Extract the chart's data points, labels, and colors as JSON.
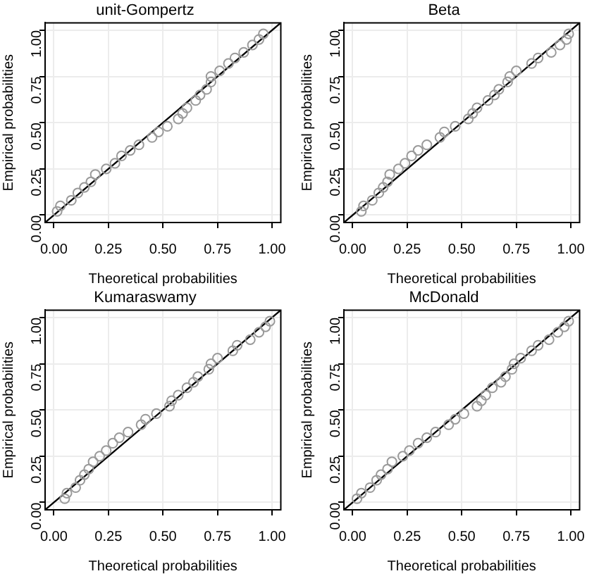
{
  "chart_data": [
    {
      "type": "scatter",
      "title": "unit-Gompertz",
      "xlabel": "Theoretical probabilities",
      "ylabel": "Empirical probabilities",
      "xlim": [
        -0.04,
        1.04
      ],
      "ylim": [
        -0.04,
        1.04
      ],
      "xticks": [
        {
          "value": 0,
          "label": "0.00"
        },
        {
          "value": 0.25,
          "label": "0.25"
        },
        {
          "value": 0.5,
          "label": "0.50"
        },
        {
          "value": 0.75,
          "label": "0.75"
        },
        {
          "value": 1,
          "label": "1.00"
        }
      ],
      "yticks": [
        {
          "value": 0,
          "label": "0.00"
        },
        {
          "value": 0.25,
          "label": "0.25"
        },
        {
          "value": 0.5,
          "label": "0.50"
        },
        {
          "value": 0.75,
          "label": "0.75"
        },
        {
          "value": 1,
          "label": "1.00"
        }
      ],
      "grid": true,
      "marker": "circle",
      "legend": false,
      "series": [
        {
          "color": "#9a9a9a",
          "x": [
            0.015,
            0.03,
            0.08,
            0.11,
            0.14,
            0.17,
            0.19,
            0.24,
            0.28,
            0.31,
            0.35,
            0.39,
            0.45,
            0.48,
            0.52,
            0.57,
            0.59,
            0.61,
            0.65,
            0.67,
            0.7,
            0.72,
            0.72,
            0.76,
            0.8,
            0.83,
            0.87,
            0.91,
            0.94,
            0.96
          ],
          "values": [
            0.02,
            0.05,
            0.08,
            0.12,
            0.15,
            0.18,
            0.22,
            0.25,
            0.28,
            0.32,
            0.35,
            0.38,
            0.42,
            0.45,
            0.48,
            0.52,
            0.55,
            0.58,
            0.62,
            0.65,
            0.68,
            0.72,
            0.75,
            0.78,
            0.82,
            0.85,
            0.88,
            0.92,
            0.95,
            0.98
          ]
        },
        {
          "type": "line",
          "color": "#000000",
          "marker": "none",
          "x": [
            -0.04,
            1.04
          ],
          "values": [
            -0.04,
            1.04
          ]
        }
      ]
    },
    {
      "type": "scatter",
      "title": "Beta",
      "xlabel": "Theoretical probabilities",
      "ylabel": "Empirical probabilities",
      "xlim": [
        -0.04,
        1.04
      ],
      "ylim": [
        -0.04,
        1.04
      ],
      "xticks": [
        {
          "value": 0,
          "label": "0.00"
        },
        {
          "value": 0.25,
          "label": "0.25"
        },
        {
          "value": 0.5,
          "label": "0.50"
        },
        {
          "value": 0.75,
          "label": "0.75"
        },
        {
          "value": 1,
          "label": "1.00"
        }
      ],
      "yticks": [
        {
          "value": 0,
          "label": "0.00"
        },
        {
          "value": 0.25,
          "label": "0.25"
        },
        {
          "value": 0.5,
          "label": "0.50"
        },
        {
          "value": 0.75,
          "label": "0.75"
        },
        {
          "value": 1,
          "label": "1.00"
        }
      ],
      "grid": true,
      "marker": "circle",
      "legend": false,
      "series": [
        {
          "color": "#9a9a9a",
          "x": [
            0.04,
            0.05,
            0.09,
            0.12,
            0.14,
            0.16,
            0.17,
            0.21,
            0.24,
            0.27,
            0.3,
            0.34,
            0.4,
            0.42,
            0.47,
            0.53,
            0.55,
            0.57,
            0.62,
            0.65,
            0.67,
            0.71,
            0.72,
            0.75,
            0.82,
            0.85,
            0.91,
            0.95,
            0.98,
            0.99
          ],
          "values": [
            0.02,
            0.05,
            0.08,
            0.12,
            0.15,
            0.18,
            0.22,
            0.25,
            0.28,
            0.32,
            0.35,
            0.38,
            0.42,
            0.45,
            0.48,
            0.52,
            0.55,
            0.58,
            0.62,
            0.65,
            0.68,
            0.72,
            0.75,
            0.78,
            0.82,
            0.85,
            0.88,
            0.92,
            0.95,
            0.98
          ]
        },
        {
          "type": "line",
          "color": "#000000",
          "marker": "none",
          "x": [
            -0.04,
            1.04
          ],
          "values": [
            -0.04,
            1.04
          ]
        }
      ]
    },
    {
      "type": "scatter",
      "title": "Kumaraswamy",
      "xlabel": "Theoretical probabilities",
      "ylabel": "Empirical probabilities",
      "xlim": [
        -0.04,
        1.04
      ],
      "ylim": [
        -0.04,
        1.04
      ],
      "xticks": [
        {
          "value": 0,
          "label": "0.00"
        },
        {
          "value": 0.25,
          "label": "0.25"
        },
        {
          "value": 0.5,
          "label": "0.50"
        },
        {
          "value": 0.75,
          "label": "0.75"
        },
        {
          "value": 1,
          "label": "1.00"
        }
      ],
      "yticks": [
        {
          "value": 0,
          "label": "0.00"
        },
        {
          "value": 0.25,
          "label": "0.25"
        },
        {
          "value": 0.5,
          "label": "0.50"
        },
        {
          "value": 0.75,
          "label": "0.75"
        },
        {
          "value": 1,
          "label": "1.00"
        }
      ],
      "grid": true,
      "marker": "circle",
      "legend": false,
      "series": [
        {
          "color": "#9a9a9a",
          "x": [
            0.05,
            0.06,
            0.1,
            0.12,
            0.14,
            0.16,
            0.18,
            0.21,
            0.24,
            0.27,
            0.3,
            0.34,
            0.4,
            0.42,
            0.47,
            0.53,
            0.54,
            0.57,
            0.61,
            0.64,
            0.66,
            0.71,
            0.72,
            0.75,
            0.82,
            0.84,
            0.9,
            0.94,
            0.97,
            0.99
          ],
          "values": [
            0.02,
            0.05,
            0.08,
            0.12,
            0.15,
            0.18,
            0.22,
            0.25,
            0.28,
            0.32,
            0.35,
            0.38,
            0.42,
            0.45,
            0.48,
            0.52,
            0.55,
            0.58,
            0.62,
            0.65,
            0.68,
            0.72,
            0.75,
            0.78,
            0.82,
            0.85,
            0.88,
            0.92,
            0.95,
            0.98
          ]
        },
        {
          "type": "line",
          "color": "#000000",
          "marker": "none",
          "x": [
            -0.04,
            1.04
          ],
          "values": [
            -0.04,
            1.04
          ]
        }
      ]
    },
    {
      "type": "scatter",
      "title": "McDonald",
      "xlabel": "Theoretical probabilities",
      "ylabel": "Empirical probabilities",
      "xlim": [
        -0.04,
        1.04
      ],
      "ylim": [
        -0.04,
        1.04
      ],
      "xticks": [
        {
          "value": 0,
          "label": "0.00"
        },
        {
          "value": 0.25,
          "label": "0.25"
        },
        {
          "value": 0.5,
          "label": "0.50"
        },
        {
          "value": 0.75,
          "label": "0.75"
        },
        {
          "value": 1,
          "label": "1.00"
        }
      ],
      "yticks": [
        {
          "value": 0,
          "label": "0.00"
        },
        {
          "value": 0.25,
          "label": "0.25"
        },
        {
          "value": 0.5,
          "label": "0.50"
        },
        {
          "value": 0.75,
          "label": "0.75"
        },
        {
          "value": 1,
          "label": "1.00"
        }
      ],
      "grid": true,
      "marker": "circle",
      "legend": false,
      "series": [
        {
          "color": "#9a9a9a",
          "x": [
            0.02,
            0.04,
            0.08,
            0.11,
            0.13,
            0.16,
            0.18,
            0.23,
            0.26,
            0.3,
            0.34,
            0.38,
            0.44,
            0.47,
            0.51,
            0.57,
            0.59,
            0.61,
            0.64,
            0.68,
            0.7,
            0.73,
            0.74,
            0.77,
            0.82,
            0.85,
            0.9,
            0.94,
            0.97,
            0.99
          ],
          "values": [
            0.02,
            0.05,
            0.08,
            0.12,
            0.15,
            0.18,
            0.22,
            0.25,
            0.28,
            0.32,
            0.35,
            0.38,
            0.42,
            0.45,
            0.48,
            0.52,
            0.55,
            0.58,
            0.62,
            0.65,
            0.68,
            0.72,
            0.75,
            0.78,
            0.82,
            0.85,
            0.88,
            0.92,
            0.95,
            0.98
          ]
        },
        {
          "type": "line",
          "color": "#000000",
          "marker": "none",
          "x": [
            -0.04,
            1.04
          ],
          "values": [
            -0.04,
            1.04
          ]
        }
      ]
    }
  ]
}
